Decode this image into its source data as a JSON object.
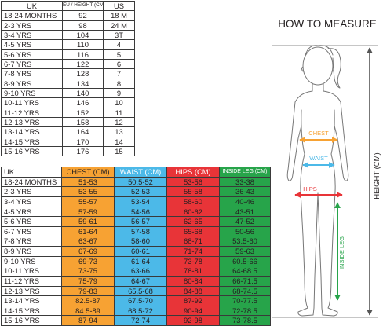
{
  "height_table": {
    "headers": [
      "UK",
      "EU / HEIGHT (CM)",
      "US"
    ],
    "rows": [
      [
        "18-24 MONTHS",
        "92",
        "18 M"
      ],
      [
        "2-3 YRS",
        "98",
        "24 M"
      ],
      [
        "3-4 YRS",
        "104",
        "3T"
      ],
      [
        "4-5 YRS",
        "110",
        "4"
      ],
      [
        "5-6 YRS",
        "116",
        "5"
      ],
      [
        "6-7 YRS",
        "122",
        "6"
      ],
      [
        "7-8 YRS",
        "128",
        "7"
      ],
      [
        "8-9 YRS",
        "134",
        "8"
      ],
      [
        "9-10 YRS",
        "140",
        "9"
      ],
      [
        "10-11 YRS",
        "146",
        "10"
      ],
      [
        "11-12 YRS",
        "152",
        "11"
      ],
      [
        "12-13 YRS",
        "158",
        "12"
      ],
      [
        "13-14 YRS",
        "164",
        "13"
      ],
      [
        "14-15 YRS",
        "170",
        "14"
      ],
      [
        "15-16 YRS",
        "176",
        "15"
      ]
    ]
  },
  "body_table": {
    "headers": [
      "UK",
      "CHEST (CM)",
      "WAIST (CM)",
      "HIPS (CM)",
      "INSIDE LEG (CM)"
    ],
    "rows": [
      [
        "18-24 MONTHS",
        "51-53",
        "50.5-52",
        "53-56",
        "33-38"
      ],
      [
        "2-3 YRS",
        "53-55",
        "52-53",
        "55-58",
        "36-43"
      ],
      [
        "3-4 YRS",
        "55-57",
        "53-54",
        "58-60",
        "40-46"
      ],
      [
        "4-5 YRS",
        "57-59",
        "54-56",
        "60-62",
        "43-51"
      ],
      [
        "5-6 YRS",
        "59-61",
        "56-57",
        "62-65",
        "47-52"
      ],
      [
        "6-7 YRS",
        "61-64",
        "57-58",
        "65-68",
        "50-56"
      ],
      [
        "7-8 YRS",
        "63-67",
        "58-60",
        "68-71",
        "53.5-60"
      ],
      [
        "8-9 YRS",
        "67-69",
        "60-61",
        "71-74",
        "59-63"
      ],
      [
        "9-10 YRS",
        "69-73",
        "61-64",
        "73-78",
        "60.5-66"
      ],
      [
        "10-11 YRS",
        "73-75",
        "63-66",
        "78-81",
        "64-68.5"
      ],
      [
        "11-12 YRS",
        "75-79",
        "64-67",
        "80-84",
        "66-71.5"
      ],
      [
        "12-13 YRS",
        "79-83",
        "65.5-68",
        "84-88",
        "68-74.5"
      ],
      [
        "13-14 YRS",
        "82.5-87",
        "67.5-70",
        "87-92",
        "70-77.5"
      ],
      [
        "14-15 YRS",
        "84.5-89",
        "68.5-72",
        "90-94",
        "72-78.5"
      ],
      [
        "15-16 YRS",
        "87-94",
        "72-74",
        "92-98",
        "73-78.5"
      ]
    ]
  },
  "guide": {
    "title": "HOW TO MEASURE",
    "chest": "CHEST",
    "waist": "WAIST",
    "hips": "HIPS",
    "inside_leg": "INSIDE LEG",
    "height": "HEIGHT (CM)"
  },
  "colors": {
    "chest": "#f7a233",
    "waist": "#4cb9e8",
    "hips": "#e83438",
    "inside_leg": "#27a44a",
    "height": "#555555"
  }
}
